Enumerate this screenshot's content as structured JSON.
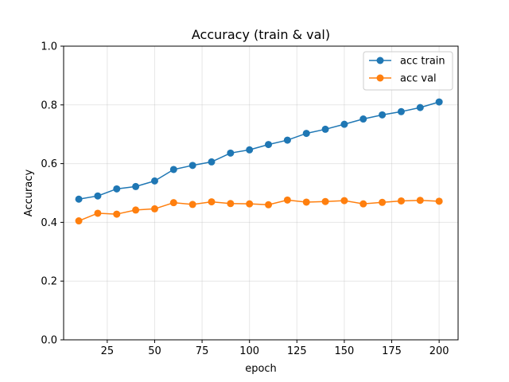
{
  "chart_data": {
    "type": "line",
    "title": "Accuracy (train & val)",
    "xlabel": "epoch",
    "ylabel": "Accuracy",
    "xlim": [
      2,
      210
    ],
    "ylim": [
      0.0,
      1.0
    ],
    "xticks": [
      25,
      50,
      75,
      100,
      125,
      150,
      175,
      200
    ],
    "yticks": [
      0.0,
      0.2,
      0.4,
      0.6,
      0.8,
      1.0
    ],
    "xtick_labels": [
      "25",
      "50",
      "75",
      "100",
      "125",
      "150",
      "175",
      "200"
    ],
    "ytick_labels": [
      "0.0",
      "0.2",
      "0.4",
      "0.6",
      "0.8",
      "1.0"
    ],
    "grid": true,
    "legend_position": "top-right",
    "x": [
      10,
      20,
      30,
      40,
      50,
      60,
      70,
      80,
      90,
      100,
      110,
      120,
      130,
      140,
      150,
      160,
      170,
      180,
      190,
      200
    ],
    "series": [
      {
        "name": "acc train",
        "color": "#1f77b4",
        "values": [
          0.479,
          0.49,
          0.514,
          0.522,
          0.541,
          0.58,
          0.594,
          0.606,
          0.636,
          0.647,
          0.665,
          0.68,
          0.703,
          0.717,
          0.734,
          0.752,
          0.766,
          0.777,
          0.791,
          0.81
        ]
      },
      {
        "name": "acc val",
        "color": "#ff7f0e",
        "values": [
          0.405,
          0.431,
          0.428,
          0.442,
          0.446,
          0.467,
          0.461,
          0.47,
          0.464,
          0.463,
          0.46,
          0.476,
          0.469,
          0.471,
          0.474,
          0.463,
          0.468,
          0.473,
          0.475,
          0.472
        ]
      }
    ]
  }
}
